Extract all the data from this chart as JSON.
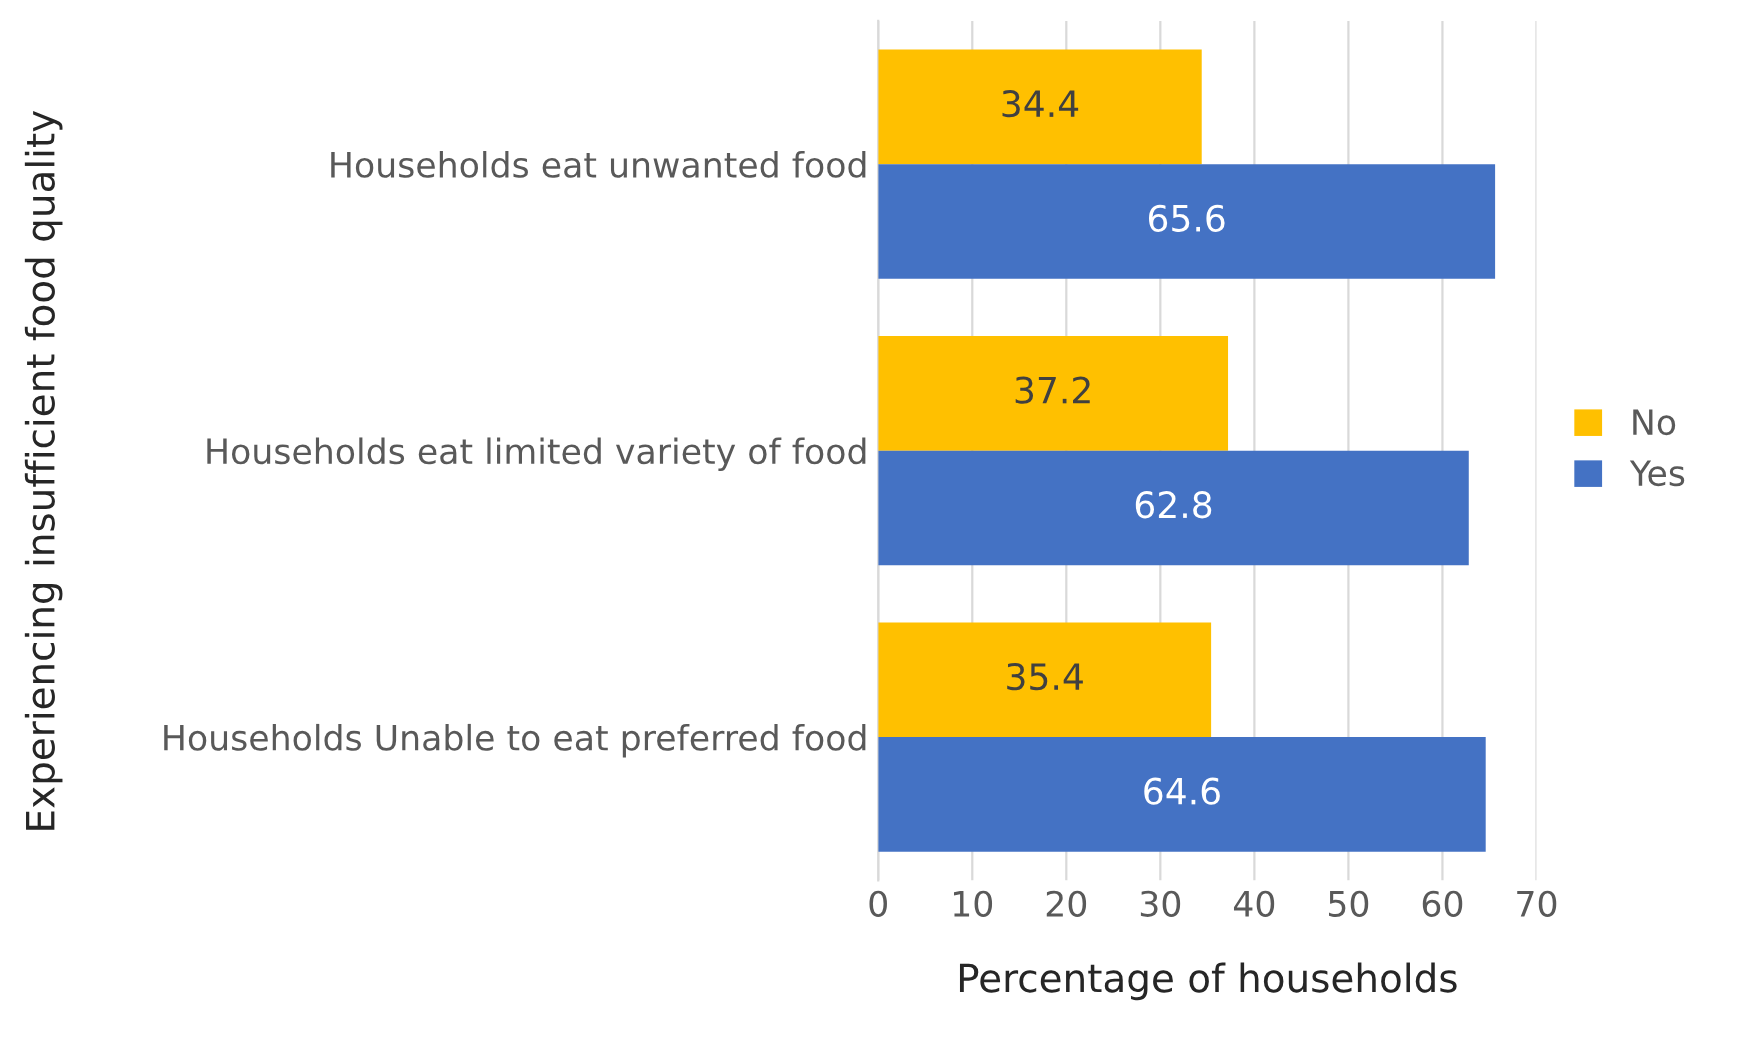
{
  "chart_data": {
    "type": "bar",
    "orientation": "horizontal",
    "xlabel": "Percentage of households",
    "ylabel": "Experiencing insufficient food quality",
    "categories": [
      "Households eat unwanted food",
      "Households eat limited variety of food",
      "Households Unable to eat preferred food"
    ],
    "series": [
      {
        "name": "No",
        "color": "#ffc000",
        "values": [
          34.4,
          37.2,
          35.4
        ]
      },
      {
        "name": "Yes",
        "color": "#4472c4",
        "values": [
          65.6,
          62.8,
          64.6
        ]
      }
    ],
    "xlim": [
      0,
      70
    ],
    "xticks": [
      0,
      10,
      20,
      30,
      40,
      50,
      60,
      70
    ],
    "grid": "x",
    "legend": "right",
    "data_labels": true
  }
}
